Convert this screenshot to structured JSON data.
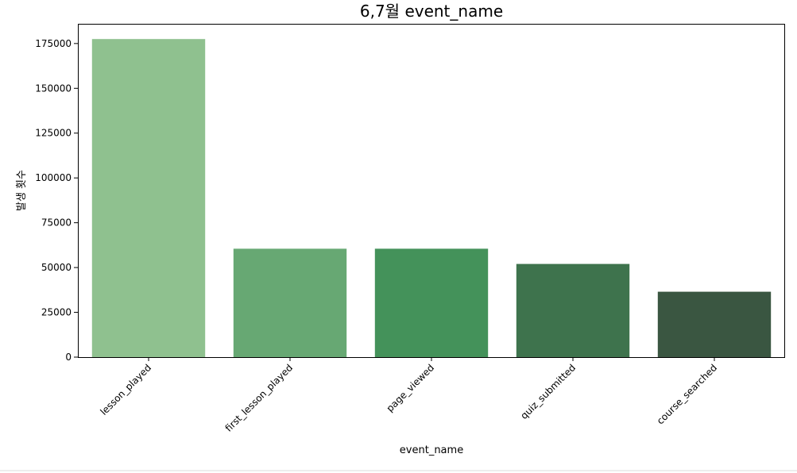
{
  "chart_data": {
    "type": "bar",
    "title": "6,7월 event_name",
    "xlabel": "event_name",
    "ylabel": "발생 횟수",
    "categories": [
      "lesson_played",
      "first_lesson_played",
      "page_viewed",
      "quiz_submitted",
      "course_searched"
    ],
    "values": [
      177500,
      60500,
      60500,
      52000,
      36500
    ],
    "colors": [
      "#8fc18f",
      "#67a873",
      "#44925a",
      "#3e734d",
      "#3a5641"
    ],
    "ylim": [
      0,
      186000
    ],
    "yticks": [
      0,
      25000,
      50000,
      75000,
      100000,
      125000,
      150000,
      175000
    ],
    "grid": false,
    "legend": "none"
  }
}
